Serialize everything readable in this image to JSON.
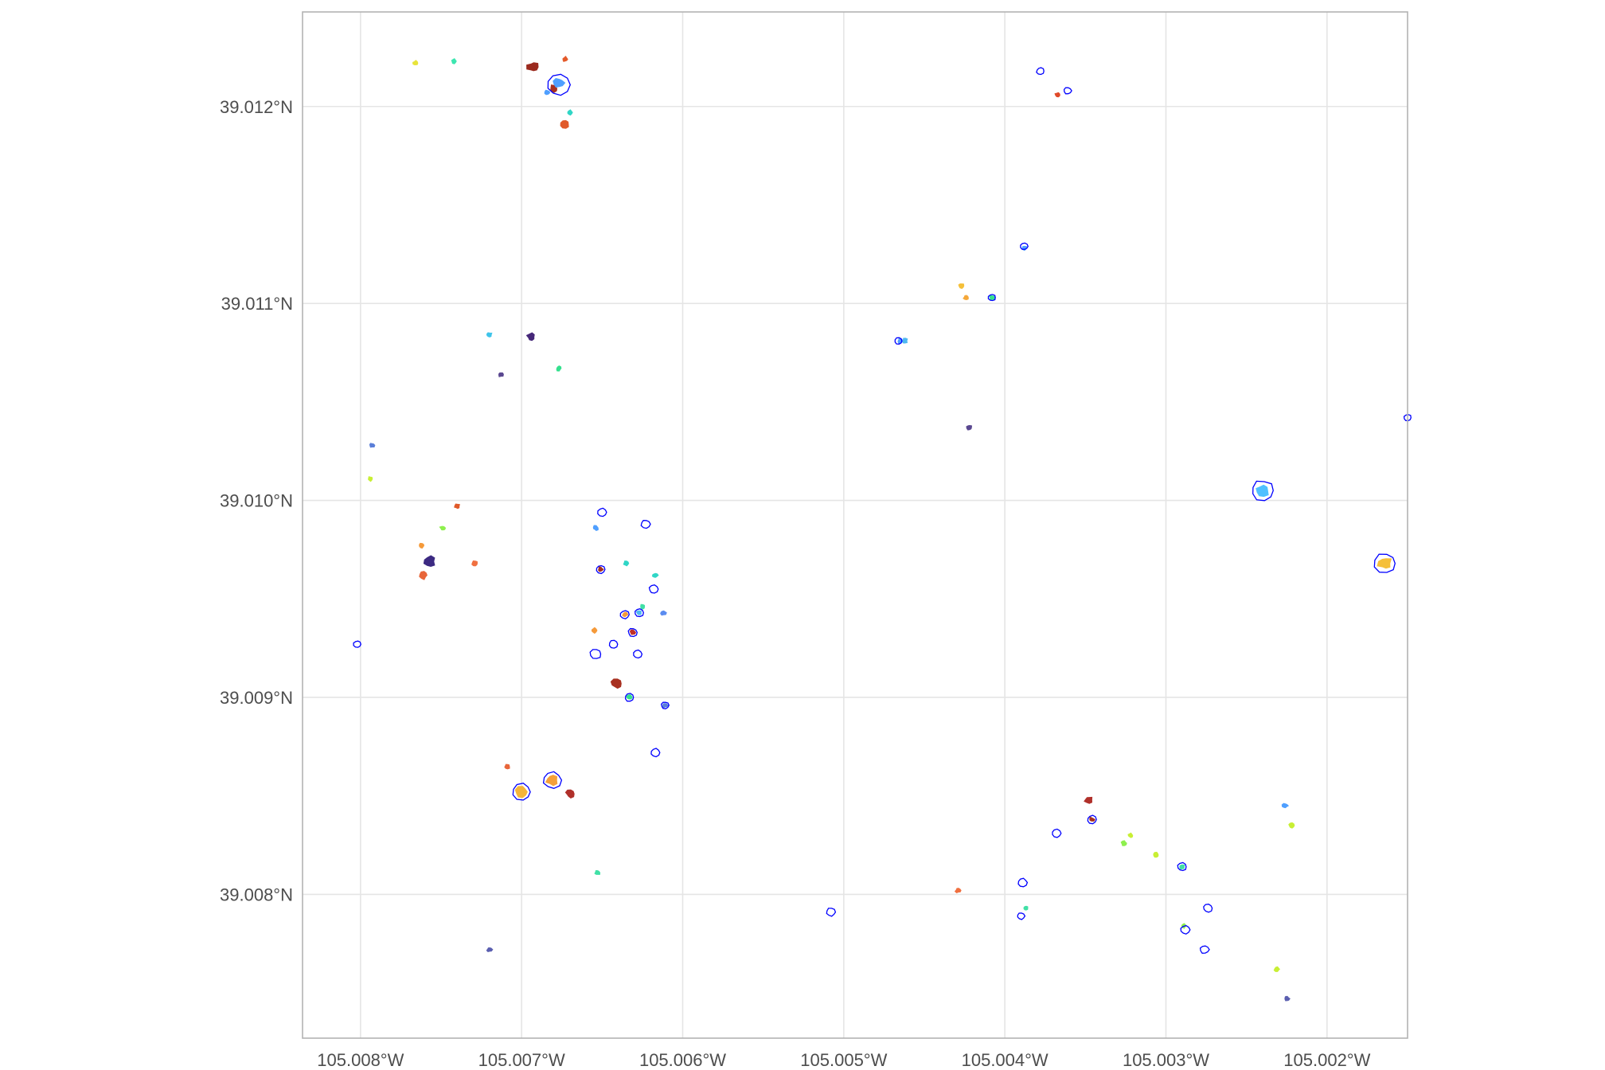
{
  "chart_data": {
    "type": "scatter",
    "title": "",
    "xlabel": "",
    "ylabel": "",
    "xlim": [
      -105.00836,
      -105.0015
    ],
    "ylim": [
      39.00727,
      39.01248
    ],
    "grid": true,
    "legend": "none",
    "x_ticks": [
      {
        "value": -105.008,
        "label": "105.008°W"
      },
      {
        "value": -105.007,
        "label": "105.007°W"
      },
      {
        "value": -105.006,
        "label": "105.006°W"
      },
      {
        "value": -105.005,
        "label": "105.005°W"
      },
      {
        "value": -105.004,
        "label": "105.004°W"
      },
      {
        "value": -105.003,
        "label": "105.003°W"
      },
      {
        "value": -105.002,
        "label": "105.002°W"
      }
    ],
    "y_ticks": [
      {
        "value": 39.008,
        "label": "39.008°N"
      },
      {
        "value": 39.009,
        "label": "39.009°N"
      },
      {
        "value": 39.01,
        "label": "39.010°N"
      },
      {
        "value": 39.011,
        "label": "39.011°N"
      },
      {
        "value": 39.012,
        "label": "39.012°N"
      }
    ],
    "outline_color": "#0000ff",
    "filled_patches": [
      {
        "lon": -105.00766,
        "lat": 39.01222,
        "color": "#e8e43a",
        "size": 1
      },
      {
        "lon": -105.00742,
        "lat": 39.01223,
        "color": "#3de6b0",
        "size": 1
      },
      {
        "lon": -105.00693,
        "lat": 39.0122,
        "color": "#9b2a1e",
        "size": 2
      },
      {
        "lon": -105.0068,
        "lat": 39.01209,
        "color": "#a83020",
        "size": 1.5
      },
      {
        "lon": -105.00673,
        "lat": 39.01224,
        "color": "#e45a2a",
        "size": 1
      },
      {
        "lon": -105.00677,
        "lat": 39.01212,
        "color": "#4f9fff",
        "size": 2
      },
      {
        "lon": -105.00684,
        "lat": 39.01207,
        "color": "#4f9fff",
        "size": 1
      },
      {
        "lon": -105.0067,
        "lat": 39.01197,
        "color": "#30d6c6",
        "size": 1
      },
      {
        "lon": -105.00673,
        "lat": 39.01191,
        "color": "#e05a2a",
        "size": 1.5
      },
      {
        "lon": -105.0072,
        "lat": 39.01084,
        "color": "#3ec4ea",
        "size": 1
      },
      {
        "lon": -105.00694,
        "lat": 39.01083,
        "color": "#462879",
        "size": 1.5
      },
      {
        "lon": -105.00677,
        "lat": 39.01067,
        "color": "#35e08e",
        "size": 1
      },
      {
        "lon": -105.00713,
        "lat": 39.01064,
        "color": "#5a4890",
        "size": 1
      },
      {
        "lon": -105.00793,
        "lat": 39.01028,
        "color": "#5b7fd8",
        "size": 1
      },
      {
        "lon": -105.00794,
        "lat": 39.01011,
        "color": "#c8ef34",
        "size": 1
      },
      {
        "lon": -105.0074,
        "lat": 39.00997,
        "color": "#e05a2a",
        "size": 1
      },
      {
        "lon": -105.00749,
        "lat": 39.00986,
        "color": "#8ef04e",
        "size": 1
      },
      {
        "lon": -105.00762,
        "lat": 39.00977,
        "color": "#f59a3a",
        "size": 1
      },
      {
        "lon": -105.00757,
        "lat": 39.00969,
        "color": "#3c2a82",
        "size": 2
      },
      {
        "lon": -105.00729,
        "lat": 39.00968,
        "color": "#f07040",
        "size": 1
      },
      {
        "lon": -105.00761,
        "lat": 39.00962,
        "color": "#e8663a",
        "size": 1.5
      },
      {
        "lon": -105.00654,
        "lat": 39.00986,
        "color": "#4f9fff",
        "size": 1
      },
      {
        "lon": -105.00651,
        "lat": 39.00965,
        "color": "#a83020",
        "size": 1
      },
      {
        "lon": -105.00635,
        "lat": 39.00968,
        "color": "#30d6c6",
        "size": 1
      },
      {
        "lon": -105.00617,
        "lat": 39.00962,
        "color": "#30d6c6",
        "size": 1
      },
      {
        "lon": -105.00625,
        "lat": 39.00946,
        "color": "#40e0a6",
        "size": 1
      },
      {
        "lon": -105.00636,
        "lat": 39.00942,
        "color": "#f59a3a",
        "size": 1
      },
      {
        "lon": -105.00627,
        "lat": 39.00943,
        "color": "#4fb8f0",
        "size": 1
      },
      {
        "lon": -105.00612,
        "lat": 39.00943,
        "color": "#5b8cf0",
        "size": 1
      },
      {
        "lon": -105.00655,
        "lat": 39.00934,
        "color": "#f59a3a",
        "size": 1
      },
      {
        "lon": -105.00631,
        "lat": 39.00933,
        "color": "#c0302a",
        "size": 1
      },
      {
        "lon": -105.00641,
        "lat": 39.00907,
        "color": "#a83020",
        "size": 2
      },
      {
        "lon": -105.00633,
        "lat": 39.009,
        "color": "#35e08e",
        "size": 1
      },
      {
        "lon": -105.00611,
        "lat": 39.00896,
        "color": "#5b7fd8",
        "size": 1
      },
      {
        "lon": -105.00709,
        "lat": 39.00865,
        "color": "#e8663a",
        "size": 1
      },
      {
        "lon": -105.007,
        "lat": 39.00852,
        "color": "#f5b53a",
        "size": 2.5
      },
      {
        "lon": -105.00681,
        "lat": 39.00858,
        "color": "#f5a03a",
        "size": 2.5
      },
      {
        "lon": -105.0067,
        "lat": 39.00851,
        "color": "#b0302a",
        "size": 1.5
      },
      {
        "lon": -105.00653,
        "lat": 39.00811,
        "color": "#40e0a6",
        "size": 1
      },
      {
        "lon": -105.0072,
        "lat": 39.00772,
        "color": "#5b5fb0",
        "size": 1
      },
      {
        "lon": -105.00367,
        "lat": 39.01206,
        "color": "#e04a2a",
        "size": 1
      },
      {
        "lon": -105.00388,
        "lat": 39.01128,
        "color": "#4f9fff",
        "size": 1
      },
      {
        "lon": -105.00427,
        "lat": 39.01109,
        "color": "#f5c03a",
        "size": 1
      },
      {
        "lon": -105.00424,
        "lat": 39.01103,
        "color": "#f5a83a",
        "size": 1
      },
      {
        "lon": -105.00408,
        "lat": 39.01103,
        "color": "#35e08e",
        "size": 1
      },
      {
        "lon": -105.00465,
        "lat": 39.01081,
        "color": "#4f9fff",
        "size": 1
      },
      {
        "lon": -105.00462,
        "lat": 39.01081,
        "color": "#4fb8f0",
        "size": 1
      },
      {
        "lon": -105.00422,
        "lat": 39.01037,
        "color": "#5a4890",
        "size": 1
      },
      {
        "lon": -105.0024,
        "lat": 39.01005,
        "color": "#4fc0ff",
        "size": 2.5
      },
      {
        "lon": -105.00164,
        "lat": 39.00968,
        "color": "#f5c03a",
        "size": 2.5
      },
      {
        "lon": -105.00348,
        "lat": 39.00848,
        "color": "#b0302a",
        "size": 1.5
      },
      {
        "lon": -105.00346,
        "lat": 39.00838,
        "color": "#a83020",
        "size": 1
      },
      {
        "lon": -105.00322,
        "lat": 39.0083,
        "color": "#c8ef34",
        "size": 1
      },
      {
        "lon": -105.00326,
        "lat": 39.00826,
        "color": "#8ef04e",
        "size": 1
      },
      {
        "lon": -105.00306,
        "lat": 39.0082,
        "color": "#c8ef34",
        "size": 1
      },
      {
        "lon": -105.0029,
        "lat": 39.00814,
        "color": "#40e0a6",
        "size": 1
      },
      {
        "lon": -105.00226,
        "lat": 39.00845,
        "color": "#4f9fff",
        "size": 1
      },
      {
        "lon": -105.00222,
        "lat": 39.00835,
        "color": "#c8ef34",
        "size": 1
      },
      {
        "lon": -105.00429,
        "lat": 39.00802,
        "color": "#f07040",
        "size": 1
      },
      {
        "lon": -105.00387,
        "lat": 39.00793,
        "color": "#40e0a6",
        "size": 1
      },
      {
        "lon": -105.00289,
        "lat": 39.00784,
        "color": "#8ef04e",
        "size": 1
      },
      {
        "lon": -105.00231,
        "lat": 39.00762,
        "color": "#c8ef34",
        "size": 1
      },
      {
        "lon": -105.00225,
        "lat": 39.00747,
        "color": "#5b5fb0",
        "size": 1
      }
    ],
    "outlined_patches": [
      {
        "lon": -105.00677,
        "lat": 39.01211,
        "size": 3
      },
      {
        "lon": -105.00378,
        "lat": 39.01218,
        "size": 1
      },
      {
        "lon": -105.00361,
        "lat": 39.01208,
        "size": 1
      },
      {
        "lon": -105.00388,
        "lat": 39.01129,
        "size": 1
      },
      {
        "lon": -105.00408,
        "lat": 39.01103,
        "size": 1
      },
      {
        "lon": -105.00466,
        "lat": 39.01081,
        "size": 1
      },
      {
        "lon": -105.0015,
        "lat": 39.01042,
        "size": 1
      },
      {
        "lon": -105.0024,
        "lat": 39.01005,
        "size": 3
      },
      {
        "lon": -105.00164,
        "lat": 39.00968,
        "size": 3
      },
      {
        "lon": -105.0065,
        "lat": 39.00994,
        "size": 1.2
      },
      {
        "lon": -105.00623,
        "lat": 39.00988,
        "size": 1.2
      },
      {
        "lon": -105.00651,
        "lat": 39.00965,
        "size": 1.2
      },
      {
        "lon": -105.00618,
        "lat": 39.00955,
        "size": 1.2
      },
      {
        "lon": -105.00636,
        "lat": 39.00942,
        "size": 1.2
      },
      {
        "lon": -105.00627,
        "lat": 39.00943,
        "size": 1.2
      },
      {
        "lon": -105.00631,
        "lat": 39.00933,
        "size": 1.2
      },
      {
        "lon": -105.00654,
        "lat": 39.00922,
        "size": 1.5
      },
      {
        "lon": -105.00643,
        "lat": 39.00927,
        "size": 1.2
      },
      {
        "lon": -105.00628,
        "lat": 39.00922,
        "size": 1.2
      },
      {
        "lon": -105.00633,
        "lat": 39.009,
        "size": 1.2
      },
      {
        "lon": -105.00611,
        "lat": 39.00896,
        "size": 1
      },
      {
        "lon": -105.00617,
        "lat": 39.00872,
        "size": 1.2
      },
      {
        "lon": -105.00802,
        "lat": 39.00927,
        "size": 1
      },
      {
        "lon": -105.007,
        "lat": 39.00852,
        "size": 2.5
      },
      {
        "lon": -105.00681,
        "lat": 39.00858,
        "size": 2.5
      },
      {
        "lon": -105.00346,
        "lat": 39.00838,
        "size": 1.2
      },
      {
        "lon": -105.00368,
        "lat": 39.00831,
        "size": 1.2
      },
      {
        "lon": -105.0029,
        "lat": 39.00814,
        "size": 1.2
      },
      {
        "lon": -105.00389,
        "lat": 39.00806,
        "size": 1.2
      },
      {
        "lon": -105.00274,
        "lat": 39.00793,
        "size": 1.2
      },
      {
        "lon": -105.0039,
        "lat": 39.00789,
        "size": 1
      },
      {
        "lon": -105.00508,
        "lat": 39.00791,
        "size": 1.2
      },
      {
        "lon": -105.00288,
        "lat": 39.00782,
        "size": 1.2
      },
      {
        "lon": -105.00276,
        "lat": 39.00772,
        "size": 1.2
      }
    ]
  }
}
